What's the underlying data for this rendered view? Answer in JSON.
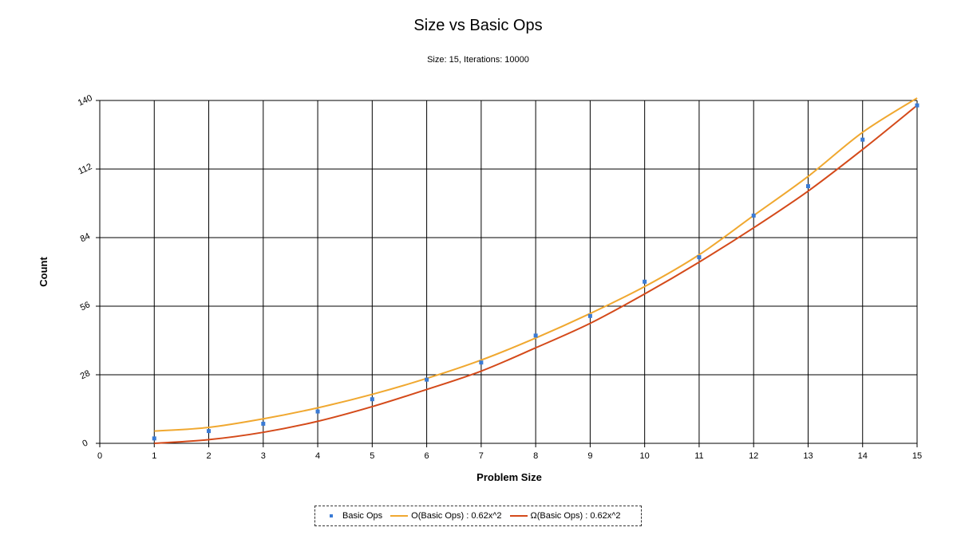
{
  "chart_data": {
    "type": "line",
    "title": "Size vs Basic Ops",
    "subtitle": "Size: 15, Iterations: 10000",
    "xlabel": "Problem Size",
    "ylabel": "Count",
    "xlim": [
      0,
      15
    ],
    "ylim": [
      0,
      140
    ],
    "x_ticks": [
      "0",
      "1",
      "2",
      "3",
      "4",
      "5",
      "6",
      "7",
      "8",
      "9",
      "10",
      "11",
      "12",
      "13",
      "14",
      "15"
    ],
    "y_ticks": [
      "0",
      "28",
      "56",
      "84",
      "112",
      "140"
    ],
    "grid": true,
    "legend_position": "bottom",
    "series": [
      {
        "name": "Basic Ops",
        "kind": "scatter",
        "color": "#3a7bd5",
        "x": [
          1,
          2,
          3,
          4,
          5,
          6,
          7,
          8,
          9,
          10,
          11,
          12,
          13,
          14,
          15
        ],
        "y": [
          2,
          5,
          8,
          13,
          18,
          26,
          33,
          44,
          52,
          66,
          76,
          93,
          105,
          124,
          138
        ]
      },
      {
        "name": "O(Basic Ops) : 0.62x^2",
        "kind": "line",
        "color": "#f0a830",
        "x": [
          1,
          2,
          3,
          4,
          5,
          6,
          7,
          8,
          9,
          10,
          11,
          12,
          13,
          14,
          15
        ],
        "y": [
          5,
          6.5,
          10,
          14.5,
          20,
          26.5,
          34,
          43,
          53,
          64,
          77,
          93,
          109,
          127,
          141
        ]
      },
      {
        "name": "Ω(Basic Ops) : 0.62x^2",
        "kind": "line",
        "color": "#d44a1a",
        "x": [
          1,
          2,
          3,
          4,
          5,
          6,
          7,
          8,
          9,
          10,
          11,
          12,
          13,
          14,
          15
        ],
        "y": [
          0,
          1.5,
          4.5,
          9,
          15,
          22,
          29.5,
          39,
          49,
          61,
          74,
          88,
          103,
          120,
          138
        ]
      }
    ]
  },
  "legend": {
    "items": [
      {
        "label": "Basic Ops"
      },
      {
        "label": "O(Basic Ops) : 0.62x^2"
      },
      {
        "label": "Ω(Basic Ops) : 0.62x^2"
      }
    ]
  }
}
